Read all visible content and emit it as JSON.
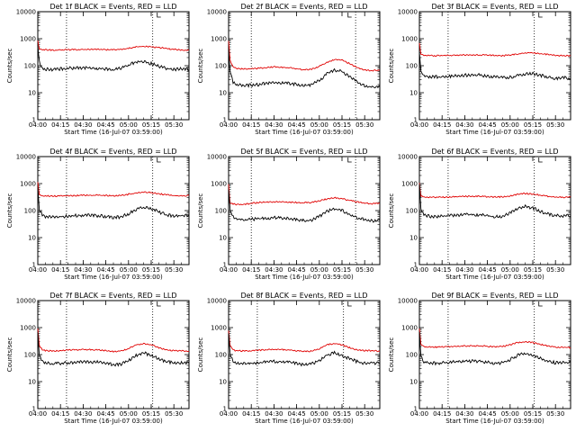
{
  "colors": {
    "events": "#000000",
    "lld": "#e00000",
    "axes": "#000000"
  },
  "shared": {
    "xlabel": "Start Time (16-Jul-07 03:59:00)",
    "ylabel": "Counts/sec",
    "xtick_labels": [
      "04:00",
      "04:15",
      "04:30",
      "04:45",
      "05:00",
      "05:15",
      "05:30"
    ],
    "ytick_labels": [
      "1",
      "10",
      "100",
      "1000",
      "10000"
    ]
  },
  "panels": [
    {
      "title": "Det 1f BLACK = Events, RED = LLD"
    },
    {
      "title": "Det 2f BLACK = Events, RED = LLD"
    },
    {
      "title": "Det 3f BLACK = Events, RED = LLD"
    },
    {
      "title": "Det 4f BLACK = Events, RED = LLD"
    },
    {
      "title": "Det 5f BLACK = Events, RED = LLD"
    },
    {
      "title": "Det 6f BLACK = Events, RED = LLD"
    },
    {
      "title": "Det 7f BLACK = Events, RED = LLD"
    },
    {
      "title": "Det 8f BLACK = Events, RED = LLD"
    },
    {
      "title": "Det 9f BLACK = Events, RED = LLD"
    }
  ],
  "chart_data": [
    {
      "type": "line",
      "title": "Det 1f BLACK = Events, RED = LLD",
      "xlabel": "Start Time (16-Jul-07 03:59:00)",
      "ylabel": "Counts/sec",
      "yscale": "log",
      "ylim": [
        1,
        10000
      ],
      "xlim": [
        "04:00",
        "05:40"
      ],
      "vlines": [
        "04:19",
        "05:16"
      ],
      "x": [
        "04:00",
        "04:01",
        "04:03",
        "04:05",
        "04:10",
        "04:20",
        "04:30",
        "04:40",
        "04:50",
        "04:55",
        "05:00",
        "05:05",
        "05:10",
        "05:15",
        "05:20",
        "05:25",
        "05:30",
        "05:35",
        "05:40"
      ],
      "series": [
        {
          "name": "Events",
          "color": "#000000",
          "values": [
            500,
            140,
            85,
            75,
            72,
            80,
            85,
            80,
            70,
            80,
            105,
            140,
            140,
            120,
            95,
            78,
            72,
            75,
            73
          ]
        },
        {
          "name": "LLD",
          "color": "#e00000",
          "values": [
            900,
            420,
            380,
            390,
            380,
            390,
            400,
            400,
            390,
            400,
            440,
            500,
            520,
            500,
            470,
            440,
            400,
            380,
            380
          ]
        }
      ]
    },
    {
      "type": "line",
      "title": "Det 2f BLACK = Events, RED = LLD",
      "xlabel": "Start Time (16-Jul-07 03:59:00)",
      "ylabel": "Counts/sec",
      "yscale": "log",
      "ylim": [
        1,
        10000
      ],
      "xlim": [
        "04:00",
        "05:40"
      ],
      "vlines": [
        "04:15",
        "05:24"
      ],
      "x": [
        "04:00",
        "04:01",
        "04:03",
        "04:05",
        "04:10",
        "04:20",
        "04:30",
        "04:40",
        "04:50",
        "04:55",
        "05:00",
        "05:05",
        "05:10",
        "05:15",
        "05:20",
        "05:25",
        "05:30",
        "05:35",
        "05:40"
      ],
      "series": [
        {
          "name": "Events",
          "color": "#000000",
          "values": [
            400,
            60,
            25,
            20,
            18,
            20,
            24,
            22,
            18,
            20,
            28,
            50,
            70,
            60,
            40,
            25,
            18,
            16,
            16
          ]
        },
        {
          "name": "LLD",
          "color": "#e00000",
          "values": [
            800,
            160,
            90,
            80,
            75,
            80,
            90,
            85,
            70,
            75,
            95,
            130,
            170,
            160,
            120,
            85,
            70,
            65,
            70
          ]
        }
      ]
    },
    {
      "type": "line",
      "title": "Det 3f BLACK = Events, RED = LLD",
      "xlabel": "Start Time (16-Jul-07 03:59:00)",
      "ylabel": "Counts/sec",
      "yscale": "log",
      "ylim": [
        1,
        10000
      ],
      "xlim": [
        "04:00",
        "05:40"
      ],
      "vlines": [
        "04:19",
        "05:16"
      ],
      "x": [
        "04:00",
        "04:01",
        "04:03",
        "04:05",
        "04:10",
        "04:20",
        "04:30",
        "04:40",
        "04:50",
        "04:55",
        "05:00",
        "05:05",
        "05:10",
        "05:15",
        "05:20",
        "05:25",
        "05:30",
        "05:35",
        "05:40"
      ],
      "series": [
        {
          "name": "Events",
          "color": "#000000",
          "values": [
            300,
            60,
            42,
            40,
            38,
            40,
            44,
            45,
            38,
            36,
            38,
            42,
            48,
            50,
            44,
            38,
            34,
            36,
            34
          ]
        },
        {
          "name": "LLD",
          "color": "#e00000",
          "values": [
            700,
            270,
            240,
            240,
            235,
            240,
            250,
            250,
            240,
            235,
            245,
            270,
            300,
            300,
            280,
            260,
            240,
            235,
            230
          ]
        }
      ]
    },
    {
      "type": "line",
      "title": "Det 4f BLACK = Events, RED = LLD",
      "xlabel": "Start Time (16-Jul-07 03:59:00)",
      "ylabel": "Counts/sec",
      "yscale": "log",
      "ylim": [
        1,
        10000
      ],
      "xlim": [
        "04:00",
        "05:40"
      ],
      "vlines": [
        "04:19",
        "05:16"
      ],
      "x": [
        "04:00",
        "04:01",
        "04:03",
        "04:05",
        "04:10",
        "04:20",
        "04:30",
        "04:40",
        "04:50",
        "04:55",
        "05:00",
        "05:05",
        "05:10",
        "05:15",
        "05:20",
        "05:25",
        "05:30",
        "05:35",
        "05:40"
      ],
      "series": [
        {
          "name": "Events",
          "color": "#000000",
          "values": [
            800,
            110,
            70,
            60,
            58,
            62,
            68,
            65,
            55,
            58,
            75,
            110,
            130,
            115,
            90,
            70,
            62,
            65,
            68
          ]
        },
        {
          "name": "LLD",
          "color": "#e00000",
          "values": [
            1100,
            380,
            350,
            350,
            345,
            355,
            370,
            370,
            355,
            360,
            400,
            450,
            480,
            460,
            420,
            390,
            360,
            355,
            360
          ]
        }
      ]
    },
    {
      "type": "line",
      "title": "Det 5f BLACK = Events, RED = LLD",
      "xlabel": "Start Time (16-Jul-07 03:59:00)",
      "ylabel": "Counts/sec",
      "yscale": "log",
      "ylim": [
        1,
        10000
      ],
      "xlim": [
        "04:00",
        "05:40"
      ],
      "vlines": [
        "04:15",
        "05:24"
      ],
      "x": [
        "04:00",
        "04:01",
        "04:03",
        "04:05",
        "04:10",
        "04:20",
        "04:30",
        "04:40",
        "04:50",
        "04:55",
        "05:00",
        "05:05",
        "05:10",
        "05:15",
        "05:20",
        "05:25",
        "05:30",
        "05:35",
        "05:40"
      ],
      "series": [
        {
          "name": "Events",
          "color": "#000000",
          "values": [
            600,
            100,
            60,
            50,
            45,
            50,
            55,
            52,
            42,
            45,
            60,
            95,
            120,
            100,
            70,
            55,
            45,
            42,
            45
          ]
        },
        {
          "name": "LLD",
          "color": "#e00000",
          "values": [
            900,
            190,
            175,
            170,
            170,
            200,
            210,
            205,
            195,
            200,
            230,
            270,
            300,
            280,
            240,
            210,
            190,
            180,
            190
          ]
        }
      ]
    },
    {
      "type": "line",
      "title": "Det 6f BLACK = Events, RED = LLD",
      "xlabel": "Start Time (16-Jul-07 03:59:00)",
      "ylabel": "Counts/sec",
      "yscale": "log",
      "ylim": [
        1,
        10000
      ],
      "xlim": [
        "04:00",
        "05:40"
      ],
      "vlines": [
        "04:19",
        "05:16"
      ],
      "x": [
        "04:00",
        "04:01",
        "04:03",
        "04:05",
        "04:10",
        "04:20",
        "04:30",
        "04:40",
        "04:50",
        "04:55",
        "05:00",
        "05:05",
        "05:10",
        "05:15",
        "05:20",
        "05:25",
        "05:30",
        "05:35",
        "05:40"
      ],
      "series": [
        {
          "name": "Events",
          "color": "#000000",
          "values": [
            900,
            110,
            70,
            62,
            60,
            65,
            72,
            70,
            58,
            60,
            80,
            120,
            140,
            125,
            95,
            75,
            65,
            62,
            65
          ]
        },
        {
          "name": "LLD",
          "color": "#e00000",
          "values": [
            1100,
            350,
            320,
            315,
            310,
            320,
            335,
            335,
            320,
            320,
            350,
            400,
            430,
            410,
            370,
            340,
            320,
            310,
            315
          ]
        }
      ]
    },
    {
      "type": "line",
      "title": "Det 7f BLACK = Events, RED = LLD",
      "xlabel": "Start Time (16-Jul-07 03:59:00)",
      "ylabel": "Counts/sec",
      "yscale": "log",
      "ylim": [
        1,
        10000
      ],
      "xlim": [
        "04:00",
        "05:40"
      ],
      "vlines": [
        "04:19",
        "05:16"
      ],
      "x": [
        "04:00",
        "04:01",
        "04:03",
        "04:05",
        "04:10",
        "04:20",
        "04:30",
        "04:40",
        "04:50",
        "04:55",
        "05:00",
        "05:05",
        "05:10",
        "05:15",
        "05:20",
        "05:25",
        "05:30",
        "05:35",
        "05:40"
      ],
      "series": [
        {
          "name": "Events",
          "color": "#000000",
          "values": [
            700,
            100,
            55,
            48,
            45,
            50,
            55,
            52,
            42,
            45,
            60,
            95,
            115,
            95,
            70,
            55,
            48,
            50,
            48
          ]
        },
        {
          "name": "LLD",
          "color": "#e00000",
          "values": [
            900,
            220,
            150,
            140,
            135,
            145,
            155,
            150,
            130,
            135,
            165,
            230,
            260,
            230,
            180,
            150,
            140,
            140,
            135
          ]
        }
      ]
    },
    {
      "type": "line",
      "title": "Det 8f BLACK = Events, RED = LLD",
      "xlabel": "Start Time (16-Jul-07 03:59:00)",
      "ylabel": "Counts/sec",
      "yscale": "log",
      "ylim": [
        1,
        10000
      ],
      "xlim": [
        "04:00",
        "05:40"
      ],
      "vlines": [
        "04:19",
        "05:16"
      ],
      "x": [
        "04:00",
        "04:01",
        "04:03",
        "04:05",
        "04:10",
        "04:20",
        "04:30",
        "04:40",
        "04:50",
        "04:55",
        "05:00",
        "05:05",
        "05:10",
        "05:15",
        "05:20",
        "05:25",
        "05:30",
        "05:35",
        "05:40"
      ],
      "series": [
        {
          "name": "Events",
          "color": "#000000",
          "values": [
            600,
            100,
            55,
            48,
            45,
            50,
            55,
            52,
            42,
            45,
            60,
            95,
            115,
            95,
            70,
            55,
            48,
            50,
            48
          ]
        },
        {
          "name": "LLD",
          "color": "#e00000",
          "values": [
            800,
            220,
            150,
            140,
            135,
            145,
            155,
            150,
            130,
            135,
            165,
            230,
            260,
            230,
            180,
            150,
            140,
            140,
            135
          ]
        }
      ]
    },
    {
      "type": "line",
      "title": "Det 9f BLACK = Events, RED = LLD",
      "xlabel": "Start Time (16-Jul-07 03:59:00)",
      "ylabel": "Counts/sec",
      "yscale": "log",
      "ylim": [
        1,
        10000
      ],
      "xlim": [
        "04:00",
        "05:40"
      ],
      "vlines": [
        "04:19",
        "05:16"
      ],
      "x": [
        "04:00",
        "04:01",
        "04:03",
        "04:05",
        "04:10",
        "04:20",
        "04:30",
        "04:40",
        "04:50",
        "04:55",
        "05:00",
        "05:05",
        "05:10",
        "05:15",
        "05:20",
        "05:25",
        "05:30",
        "05:35",
        "05:40"
      ],
      "series": [
        {
          "name": "Events",
          "color": "#000000",
          "values": [
            700,
            90,
            55,
            50,
            48,
            52,
            58,
            56,
            48,
            50,
            65,
            95,
            110,
            95,
            72,
            58,
            50,
            52,
            50
          ]
        },
        {
          "name": "LLD",
          "color": "#e00000",
          "values": [
            900,
            240,
            200,
            190,
            190,
            200,
            210,
            210,
            195,
            200,
            230,
            280,
            300,
            280,
            240,
            210,
            190,
            185,
            180
          ]
        }
      ]
    }
  ]
}
